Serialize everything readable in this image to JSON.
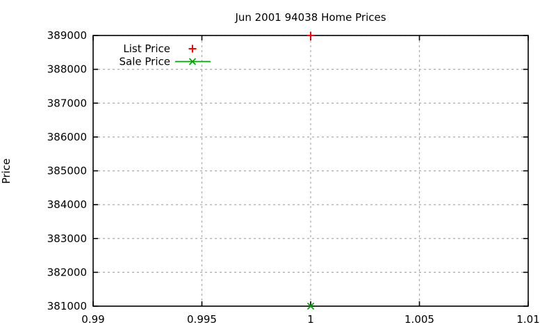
{
  "window": {
    "background": "#ffffff"
  },
  "chart_data": {
    "type": "scatter",
    "title": "Jun 2001 94038 Home Prices",
    "xlabel": "",
    "ylabel": "Price",
    "xlim": [
      0.99,
      1.01
    ],
    "ylim": [
      381000,
      389000
    ],
    "x_ticks": [
      0.99,
      0.995,
      1.0,
      1.005,
      1.01
    ],
    "x_tick_labels": [
      "0.99",
      "0.995",
      "1",
      "1.005",
      "1.01"
    ],
    "y_ticks": [
      381000,
      382000,
      383000,
      384000,
      385000,
      386000,
      387000,
      388000,
      389000
    ],
    "y_tick_labels": [
      "381000",
      "382000",
      "383000",
      "384000",
      "385000",
      "386000",
      "387000",
      "388000",
      "389000"
    ],
    "grid": true,
    "legend_position": "top-left-inside",
    "series": [
      {
        "name": "List Price",
        "style": "points",
        "marker": "plus",
        "color": "#ff0000",
        "points": [
          [
            1.0,
            389000
          ]
        ]
      },
      {
        "name": "Sale Price",
        "style": "linespoints",
        "marker": "cross",
        "color": "#00a400",
        "points": [
          [
            1.0,
            381000
          ]
        ]
      }
    ],
    "colors": {
      "axis": "#000000",
      "grid": "#aaaaaa",
      "text": "#000000",
      "background": "#ffffff"
    }
  }
}
